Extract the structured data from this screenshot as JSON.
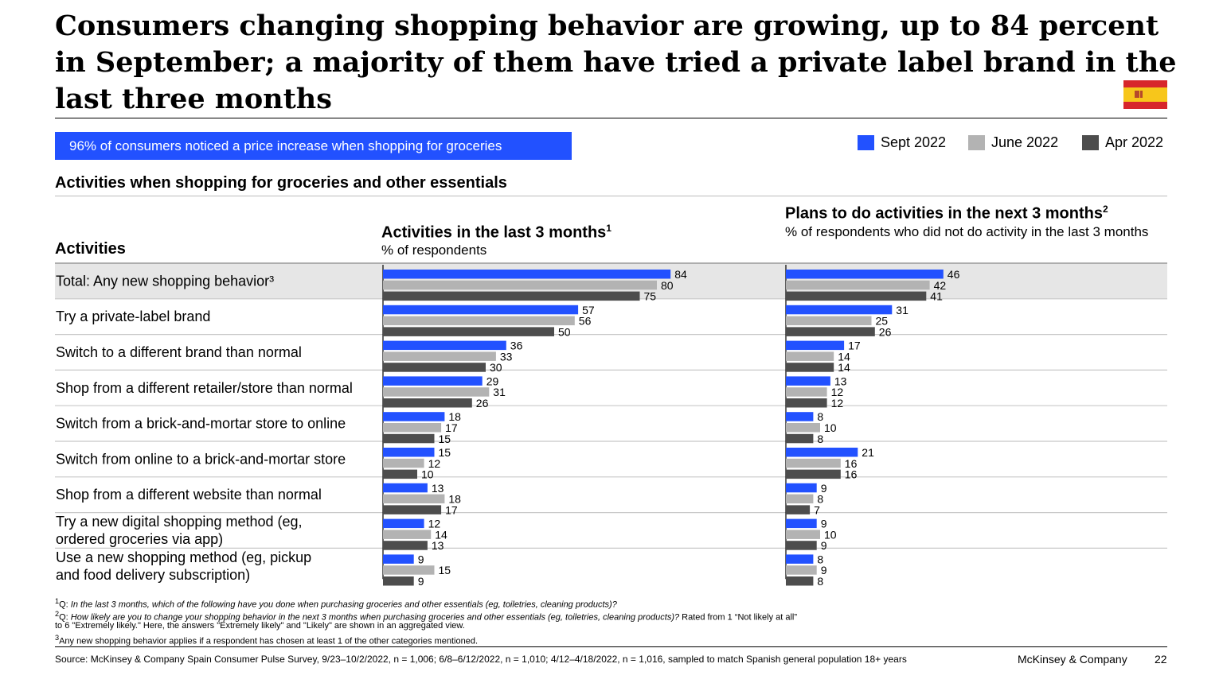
{
  "title": "Consumers changing shopping behavior are growing, up to 84 percent in September; a majority of them have tried a private label brand in the last three months",
  "callout": "96% of consumers noticed a price increase when shopping for groceries",
  "subheading": "Activities when shopping for groceries and other essentials",
  "flag_icon": "spain-flag-icon",
  "legend": [
    {
      "name": "Sept 2022",
      "color": "#2251ff"
    },
    {
      "name": "June 2022",
      "color": "#b3b3b3"
    },
    {
      "name": "Apr 2022",
      "color": "#4d4d4d"
    }
  ],
  "activities_header": "Activities",
  "left_panel": {
    "title": "Activities in the last 3 months",
    "title_sup": "1",
    "subtitle": "% of respondents"
  },
  "right_panel": {
    "title": "Plans to do activities in the next 3 months",
    "title_sup": "2",
    "subtitle": "% of respondents who did not do activity in the last 3 months"
  },
  "chart_data": {
    "type": "bar",
    "orientation": "horizontal",
    "categories": [
      "Total: Any new shopping behavior³",
      "Try a private-label brand",
      "Switch to a different brand than normal",
      "Shop from a different retailer/store than normal",
      "Switch from a brick-and-mortar store to online",
      "Switch from online to a brick-and-mortar store",
      "Shop from a different website than normal",
      "Try a new digital shopping method (eg, ordered groceries via app)",
      "Use a new shopping method (eg, pickup and food delivery subscription)"
    ],
    "panels": [
      {
        "title": "Activities in the last 3 months",
        "series": [
          {
            "name": "Sept 2022",
            "values": [
              84,
              57,
              36,
              29,
              18,
              15,
              13,
              12,
              9
            ]
          },
          {
            "name": "June 2022",
            "values": [
              80,
              56,
              33,
              31,
              17,
              12,
              18,
              14,
              15
            ]
          },
          {
            "name": "Apr 2022",
            "values": [
              75,
              50,
              30,
              26,
              15,
              10,
              17,
              13,
              9
            ]
          }
        ]
      },
      {
        "title": "Plans to do activities in the next 3 months",
        "series": [
          {
            "name": "Sept 2022",
            "values": [
              46,
              31,
              17,
              13,
              8,
              21,
              9,
              9,
              8
            ]
          },
          {
            "name": "June 2022",
            "values": [
              42,
              25,
              14,
              12,
              10,
              16,
              8,
              10,
              9
            ]
          },
          {
            "name": "Apr 2022",
            "values": [
              41,
              26,
              14,
              12,
              8,
              16,
              7,
              9,
              8
            ]
          }
        ]
      }
    ],
    "unit": "% of respondents",
    "xlim": [
      0,
      100
    ],
    "highlighted_category": "Total: Any new shopping behavior³"
  },
  "footnotes": {
    "f1_sup": "1",
    "f1_label": "Q: ",
    "f1_text": "In the last 3 months, which of the following have you done when purchasing groceries and other essentials (eg, toiletries, cleaning products)?",
    "f2_sup": "2",
    "f2_label": "Q: ",
    "f2_text": "How likely are you to change your shopping behavior in the next 3 months when purchasing groceries and other essentials (eg, toiletries, cleaning products)?",
    "f2_text2": " Rated from 1 “Not likely at all”",
    "f2_line2": "to 6 \"Extremely likely.\" Here, the answers \"Extremely likely\" and \"Likely\" are shown in an aggregated view.",
    "f3_sup": "3",
    "f3_text": "Any new shopping behavior applies if a respondent has chosen at least 1 of the other categories mentioned."
  },
  "source": "Source: McKinsey & Company Spain Consumer Pulse Survey, 9/23–10/2/2022, n = 1,006; 6/8–6/12/2022, n = 1,010; 4/12–4/18/2022, n = 1,016, sampled to match Spanish general population 18+ years",
  "brand": "McKinsey & Company",
  "page_number": "22"
}
